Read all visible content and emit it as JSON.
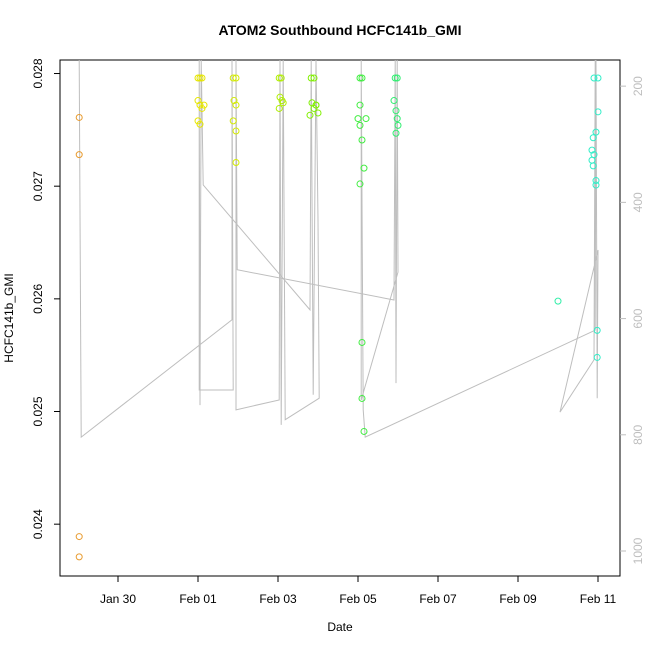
{
  "chart_data": {
    "type": "scatter",
    "title": "ATOM2 Southbound HCFC141b_GMI",
    "xlabel": "Date",
    "ylabel": "HCFC141b_GMI",
    "xlim": [
      28.55,
      42.55
    ],
    "xticks": [
      {
        "value": 30,
        "label": "Jan 30"
      },
      {
        "value": 32,
        "label": "Feb 01"
      },
      {
        "value": 34,
        "label": "Feb 03"
      },
      {
        "value": 36,
        "label": "Feb 05"
      },
      {
        "value": 38,
        "label": "Feb 07"
      },
      {
        "value": 40,
        "label": "Feb 09"
      },
      {
        "value": 42,
        "label": "Feb 11"
      }
    ],
    "ylim": [
      0.02354,
      0.02812
    ],
    "yticks": [
      0.024,
      0.025,
      0.026,
      0.027,
      0.028
    ],
    "y2lim": [
      1043,
      155
    ],
    "y2ticks": [
      200,
      400,
      600,
      800,
      1000
    ],
    "series": [
      {
        "type": "line",
        "axis": "y2",
        "color": "#bebebe",
        "x": [
          29.03,
          29.08,
          32.85,
          32.85,
          32.88,
          32.03,
          32.03,
          32.05,
          32.08,
          32.13,
          34.8,
          34.83,
          34.88,
          34.95,
          35.0,
          35.03,
          34.18,
          34.13,
          34.08,
          34.05,
          34.03,
          32.95,
          32.95,
          32.98,
          36.9,
          36.93,
          36.95,
          36.98,
          37.0,
          36.08,
          36.08,
          36.13,
          36.18,
          41.93,
          41.95,
          41.98,
          42.0,
          41.05,
          41.9,
          41.93
        ],
        "values": [
          155,
          804,
          602,
          155,
          723,
          723,
          155,
          749,
          155,
          370,
          585,
          155,
          731,
          155,
          430,
          737,
          774,
          155,
          783,
          155,
          740,
          757,
          155,
          516,
          568,
          155,
          711,
          155,
          520,
          740,
          155,
          757,
          804,
          620,
          155,
          737,
          482,
          761,
          671,
          155
        ]
      },
      {
        "color": "#e89b2f",
        "x": [
          29.03,
          29.03,
          29.03,
          29.03
        ],
        "values": [
          0.02761,
          0.02728,
          0.02389,
          0.02371
        ]
      },
      {
        "color": "#e6e600",
        "x": [
          32.0,
          32.05,
          32.1,
          32.0,
          32.05,
          32.1,
          32.0,
          32.05,
          32.15
        ],
        "values": [
          0.02796,
          0.02796,
          0.02796,
          0.02776,
          0.02772,
          0.02769,
          0.02758,
          0.02755,
          0.02772
        ]
      },
      {
        "color": "#d4ec00",
        "x": [
          32.88,
          32.95,
          32.9,
          32.95,
          32.88,
          32.95,
          32.95
        ],
        "values": [
          0.02796,
          0.02796,
          0.02776,
          0.02772,
          0.02758,
          0.02749,
          0.02721
        ]
      },
      {
        "color": "#b0ee00",
        "x": [
          34.03,
          34.08,
          34.05,
          34.1,
          34.13,
          34.03
        ],
        "values": [
          0.02796,
          0.02796,
          0.02779,
          0.02776,
          0.02774,
          0.02769
        ]
      },
      {
        "color": "#80f000",
        "x": [
          34.83,
          34.9,
          34.95,
          34.85,
          34.9,
          34.95,
          34.8,
          35.0
        ],
        "values": [
          0.02796,
          0.02796,
          0.02772,
          0.02774,
          0.02769,
          0.02772,
          0.02763,
          0.02765
        ]
      },
      {
        "color": "#40ee40",
        "x": [
          36.05,
          36.1,
          36.05,
          36.0,
          36.2,
          36.05,
          36.1,
          36.15,
          36.05,
          36.1,
          36.1
        ],
        "values": [
          0.02796,
          0.02796,
          0.02772,
          0.0276,
          0.0276,
          0.02754,
          0.02741,
          0.02716,
          0.02702,
          0.025613,
          0.025116
        ]
      },
      {
        "color": "#40ee40",
        "x": [
          36.15
        ],
        "values": [
          0.024823
        ]
      },
      {
        "color": "#30ee70",
        "x": [
          36.93,
          36.98,
          36.9,
          36.95,
          36.98,
          37.0,
          36.95
        ],
        "values": [
          0.02796,
          0.02796,
          0.02776,
          0.02767,
          0.0276,
          0.02754,
          0.02747
        ]
      },
      {
        "color": "#30eea8",
        "x": [
          41.0
        ],
        "values": [
          0.02598
        ]
      },
      {
        "color": "#30eec8",
        "x": [
          41.9,
          42.0,
          42.0,
          41.88,
          41.95,
          41.85,
          41.9,
          41.85,
          41.88,
          41.95,
          41.95,
          41.98,
          41.98
        ],
        "values": [
          0.02796,
          0.02796,
          0.02766,
          0.02743,
          0.02748,
          0.02732,
          0.02728,
          0.02723,
          0.02718,
          0.02705,
          0.02701,
          0.02572,
          0.02548
        ]
      }
    ]
  }
}
